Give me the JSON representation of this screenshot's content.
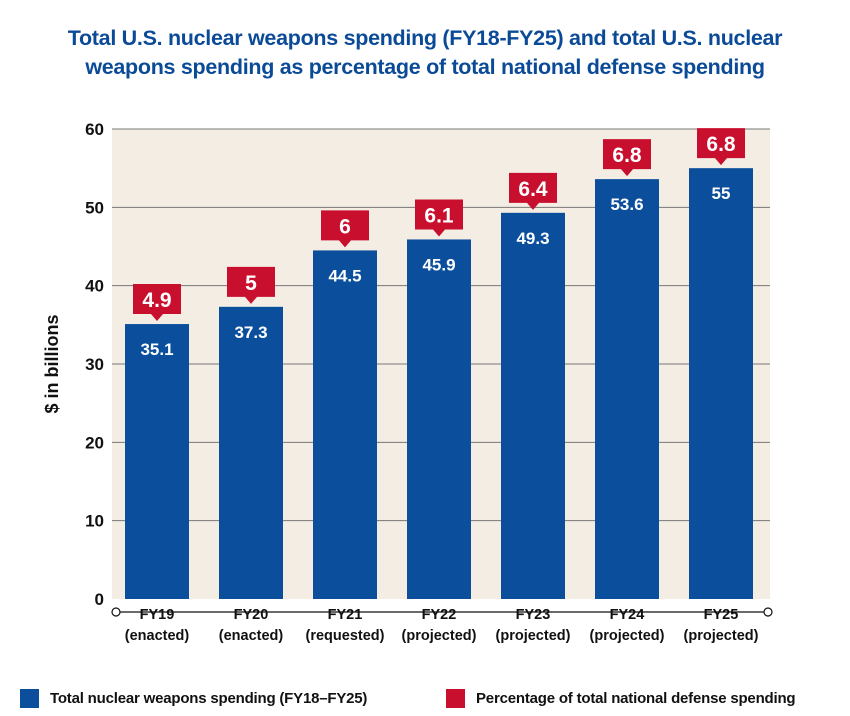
{
  "title_lines": [
    "Total U.S. nuclear weapons spending (FY18-FY25) and total U.S. nuclear",
    "weapons spending as percentage of total national defense spending"
  ],
  "colors": {
    "bar": "#0b4f9c",
    "callout": "#c8102e",
    "plot_bg": "#f4ede4",
    "title": "#0b4a97",
    "grid": "#777777"
  },
  "chart_data": {
    "type": "bar",
    "title": "Total U.S. nuclear weapons spending (FY18-FY25) and total U.S. nuclear weapons spending as percentage of total national defense spending",
    "ylabel": "$ in billions",
    "xlabel": "",
    "ylim": [
      0,
      60
    ],
    "yticks": [
      0,
      10,
      20,
      30,
      40,
      50,
      60
    ],
    "grid": true,
    "categories": [
      [
        "FY19",
        "(enacted)"
      ],
      [
        "FY20",
        "(enacted)"
      ],
      [
        "FY21",
        "(requested)"
      ],
      [
        "FY22",
        "(projected)"
      ],
      [
        "FY23",
        "(projected)"
      ],
      [
        "FY24",
        "(projected)"
      ],
      [
        "FY25",
        "(projected)"
      ]
    ],
    "series": [
      {
        "name": "Total nuclear weapons spending (FY18–FY25)",
        "values": [
          35.1,
          37.3,
          44.5,
          45.9,
          49.3,
          53.6,
          55
        ]
      },
      {
        "name": "Percentage of total national defense spending",
        "values": [
          4.9,
          5,
          6,
          6.1,
          6.4,
          6.8,
          6.8
        ]
      }
    ],
    "legend_position": "bottom"
  }
}
